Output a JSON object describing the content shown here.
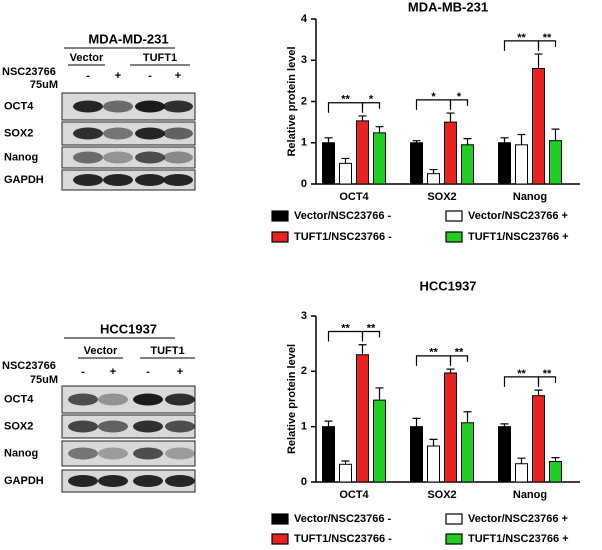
{
  "chart_data": [
    {
      "type": "bar",
      "title": "MDA-MB-231",
      "ylabel": "Relative protein level",
      "categories": [
        "OCT4",
        "SOX2",
        "Nanog"
      ],
      "series": [
        {
          "name": "Vector/NSC23766 -",
          "color": "#000000",
          "values": [
            1.0,
            1.0,
            1.0
          ],
          "errors": [
            0.12,
            0.05,
            0.12
          ]
        },
        {
          "name": "Vector/NSC23766 +",
          "color": "#ffffff",
          "values": [
            0.5,
            0.25,
            0.95
          ],
          "errors": [
            0.12,
            0.1,
            0.25
          ]
        },
        {
          "name": "TUFT1/NSC23766 -",
          "color": "#e8231f",
          "values": [
            1.53,
            1.5,
            2.8
          ],
          "errors": [
            0.12,
            0.22,
            0.35
          ]
        },
        {
          "name": "TUFT1/NSC23766 +",
          "color": "#22cc22",
          "values": [
            1.24,
            0.95,
            1.05
          ],
          "errors": [
            0.15,
            0.15,
            0.28
          ]
        }
      ],
      "significance": [
        [
          "**",
          "*"
        ],
        [
          "*",
          "*"
        ],
        [
          "**",
          "**"
        ]
      ],
      "ylim": [
        0,
        4
      ],
      "yticks": [
        0,
        1,
        2,
        3,
        4
      ]
    },
    {
      "type": "bar",
      "title": "HCC1937",
      "ylabel": "Relative protein level",
      "categories": [
        "OCT4",
        "SOX2",
        "Nanog"
      ],
      "series": [
        {
          "name": "Vector/NSC23766 -",
          "color": "#000000",
          "values": [
            1.0,
            1.0,
            1.0
          ],
          "errors": [
            0.1,
            0.15,
            0.05
          ]
        },
        {
          "name": "Vector/NSC23766 +",
          "color": "#ffffff",
          "values": [
            0.32,
            0.65,
            0.33
          ],
          "errors": [
            0.06,
            0.12,
            0.1
          ]
        },
        {
          "name": "TUFT1/NSC23766 -",
          "color": "#e8231f",
          "values": [
            2.3,
            1.97,
            1.56
          ],
          "errors": [
            0.18,
            0.07,
            0.1
          ]
        },
        {
          "name": "TUFT1/NSC23766 +",
          "color": "#22cc22",
          "values": [
            1.48,
            1.07,
            0.37
          ],
          "errors": [
            0.22,
            0.2,
            0.07
          ]
        }
      ],
      "significance": [
        [
          "**",
          "**"
        ],
        [
          "**",
          "**"
        ],
        [
          "**",
          "**"
        ]
      ],
      "ylim": [
        0,
        3
      ],
      "yticks": [
        0,
        1,
        2,
        3
      ]
    }
  ],
  "blots": [
    {
      "title": "MDA-MD-231",
      "groups": [
        "Vector",
        "TUFT1"
      ],
      "treatment": [
        "NSC23766",
        "75uM"
      ],
      "signs": [
        "-",
        "+",
        "-",
        "+"
      ],
      "rows": [
        "OCT4",
        "SOX2",
        "Nanog",
        "GAPDH"
      ]
    },
    {
      "title": "HCC1937",
      "groups": [
        "Vector",
        "TUFT1"
      ],
      "treatment": [
        "NSC23766",
        "75uM"
      ],
      "signs": [
        "-",
        "+",
        "-",
        "+"
      ],
      "rows": [
        "OCT4",
        "SOX2",
        "Nanog",
        "GAPDH"
      ]
    }
  ]
}
